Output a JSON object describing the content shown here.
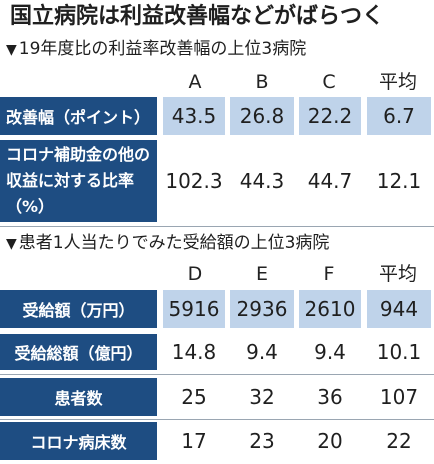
{
  "title": "国立病院は利益改善幅などがばらつく",
  "section1": {
    "heading": "19年度比の利益率改善幅の上位3病院",
    "columns": [
      "A",
      "B",
      "C",
      "平均"
    ],
    "rows": [
      {
        "label": "改善幅（ポイント）",
        "values": [
          "43.5",
          "26.8",
          "22.2",
          "6.7"
        ]
      },
      {
        "label": "コロナ補助金の他の収益に対する比率（%）",
        "values": [
          "102.3",
          "44.3",
          "44.7",
          "12.1"
        ]
      }
    ]
  },
  "section2": {
    "heading": "患者1人当たりでみた受給額の上位3病院",
    "columns": [
      "D",
      "E",
      "F",
      "平均"
    ],
    "rows": [
      {
        "label": "受給額（万円）",
        "values": [
          "5916",
          "2936",
          "2610",
          "944"
        ]
      },
      {
        "label": "受給総額（億円）",
        "values": [
          "14.8",
          "9.4",
          "9.4",
          "10.1"
        ]
      },
      {
        "label": "患者数",
        "values": [
          "25",
          "32",
          "36",
          "107"
        ]
      },
      {
        "label": "コロナ病床数",
        "values": [
          "17",
          "23",
          "20",
          "22"
        ]
      }
    ]
  },
  "colors": {
    "label_bg": "#1e4d82",
    "highlight_bg": "#bfd3ea",
    "label_text": "#ffffff"
  }
}
